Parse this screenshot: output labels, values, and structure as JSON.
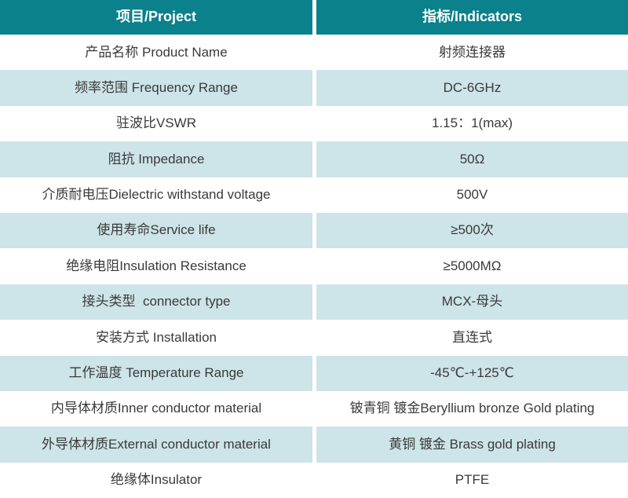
{
  "table": {
    "colors": {
      "header_background": "#0a818b",
      "header_text": "#ffffff",
      "alt_row_background": "#cde4e8",
      "row_background": "#ffffff",
      "body_text": "#3a3a3a"
    },
    "header": {
      "project": "项目/Project",
      "indicators": "指标/Indicators"
    },
    "rows": [
      {
        "project": "产品名称 Product Name",
        "indicator": "射频连接器"
      },
      {
        "project": "频率范围 Frequency Range",
        "indicator": "DC-6GHz"
      },
      {
        "project": "驻波比VSWR",
        "indicator": "1.15：1(max)"
      },
      {
        "project": "阻抗 Impedance",
        "indicator": "50Ω"
      },
      {
        "project": "介质耐电压Dielectric withstand voltage",
        "indicator": "500V"
      },
      {
        "project": "使用寿命Service life",
        "indicator": "≥500次"
      },
      {
        "project": "绝缘电阻Insulation Resistance",
        "indicator": "≥5000MΩ"
      },
      {
        "project": "接头类型  connector type",
        "indicator": "MCX-母头"
      },
      {
        "project": "安装方式 Installation",
        "indicator": "直连式"
      },
      {
        "project": "工作温度 Temperature Range",
        "indicator": "-45℃-+125℃"
      },
      {
        "project": "内导体材质Inner conductor material",
        "indicator": "铍青铜 镀金Beryllium bronze Gold plating"
      },
      {
        "project": "外导体材质External conductor material",
        "indicator": "黄铜 镀金 Brass gold plating"
      },
      {
        "project": "绝缘体Insulator",
        "indicator": "PTFE"
      }
    ]
  }
}
